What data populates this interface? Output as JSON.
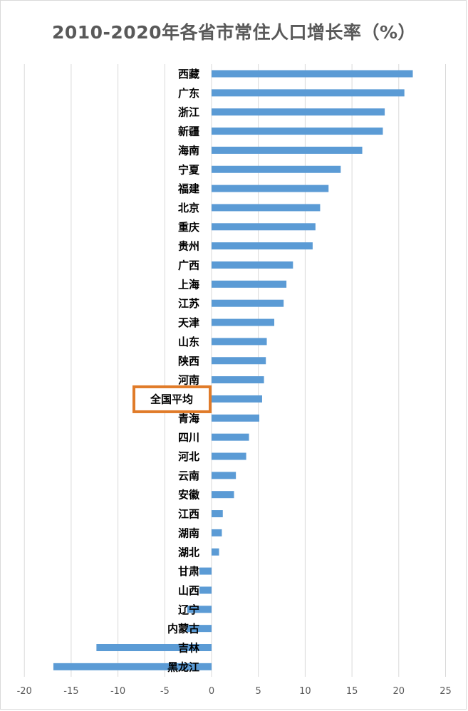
{
  "chart_data": {
    "type": "bar",
    "orientation": "horizontal",
    "title": "2010-2020年各省市常住人口增长率（%）",
    "xlabel": "",
    "ylabel": "",
    "xlim": [
      -20,
      25
    ],
    "xticks": [
      -20,
      -15,
      -10,
      -5,
      0,
      5,
      10,
      15,
      20,
      25
    ],
    "grid": "vertical",
    "bar_color": "#5b9bd5",
    "highlight_color": "#e07b29",
    "highlight_category": "全国平均",
    "categories": [
      "西藏",
      "广东",
      "浙江",
      "新疆",
      "海南",
      "宁夏",
      "福建",
      "北京",
      "重庆",
      "贵州",
      "广西",
      "上海",
      "江苏",
      "天津",
      "山东",
      "陕西",
      "河南",
      "全国平均",
      "青海",
      "四川",
      "河北",
      "云南",
      "安徽",
      "江西",
      "湖南",
      "湖北",
      "甘肃",
      "山西",
      "辽宁",
      "内蒙古",
      "吉林",
      "黑龙江"
    ],
    "values": [
      21.5,
      20.6,
      18.5,
      18.3,
      16.1,
      13.8,
      12.5,
      11.6,
      11.1,
      10.8,
      8.7,
      8.0,
      7.7,
      6.7,
      5.9,
      5.8,
      5.6,
      5.4,
      5.1,
      4.0,
      3.7,
      2.6,
      2.4,
      1.2,
      1.1,
      0.8,
      -1.3,
      -1.3,
      -2.6,
      -2.7,
      -12.3,
      -16.9
    ]
  }
}
